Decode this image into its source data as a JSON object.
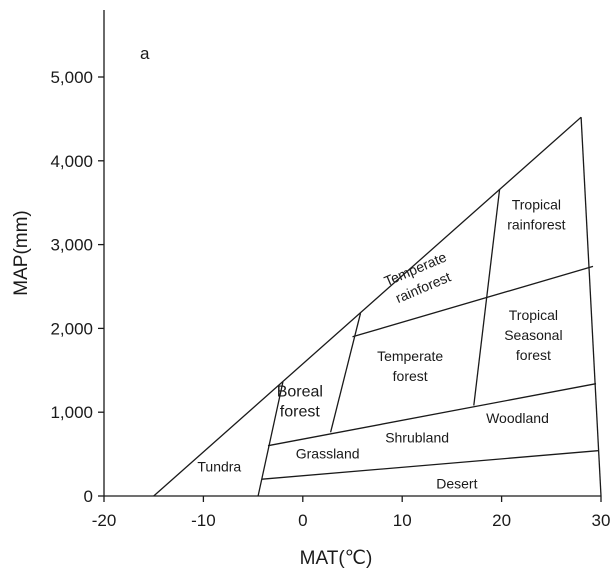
{
  "chart_data": {
    "type": "diagram",
    "panel_label": "a",
    "xlabel": "MAT(℃)",
    "ylabel": "MAP(mm)",
    "xlim": [
      -20,
      30
    ],
    "ylim": [
      0,
      5800
    ],
    "x_ticks": [
      -20,
      -10,
      0,
      10,
      20,
      30
    ],
    "x_tick_labels": [
      "-20",
      "-10",
      "0",
      "10",
      "20",
      "30"
    ],
    "y_ticks": [
      0,
      1000,
      2000,
      3000,
      4000,
      5000
    ],
    "y_tick_labels": [
      "0",
      "1,000",
      "2,000",
      "3,000",
      "4,000",
      "5,000"
    ],
    "grid": false,
    "boundaries": [
      {
        "name": "outer-left-edge",
        "points": [
          [
            -15,
            0
          ],
          [
            28,
            4520
          ]
        ]
      },
      {
        "name": "outer-right-edge",
        "points": [
          [
            28,
            4520
          ],
          [
            30,
            0
          ]
        ]
      },
      {
        "name": "desert-top",
        "points": [
          [
            -4.1,
            200
          ],
          [
            29.7,
            540
          ]
        ]
      },
      {
        "name": "grassland-shrubland-top",
        "points": [
          [
            -3.5,
            600
          ],
          [
            29.5,
            1340
          ]
        ]
      },
      {
        "name": "temperate-top",
        "points": [
          [
            5,
            1900
          ],
          [
            29.2,
            2740
          ]
        ]
      },
      {
        "name": "arctic-divide",
        "points": [
          [
            -4.5,
            0
          ],
          [
            -2,
            1360
          ]
        ]
      },
      {
        "name": "boreal-temperate-divide",
        "points": [
          [
            2.8,
            760
          ],
          [
            5.8,
            2180
          ]
        ]
      },
      {
        "name": "temperate-tropical-divide",
        "points": [
          [
            17.2,
            1080
          ],
          [
            19.8,
            3660
          ]
        ]
      }
    ],
    "regions": [
      {
        "id": "tundra",
        "lines": [
          "Tundra"
        ],
        "at": [
          -8.4,
          350
        ]
      },
      {
        "id": "boreal",
        "lines": [
          "Boreal",
          "forest"
        ],
        "at": [
          -0.3,
          1130
        ],
        "large": true
      },
      {
        "id": "grassland",
        "lines": [
          "Grassland"
        ],
        "at": [
          2.5,
          510
        ]
      },
      {
        "id": "shrubland",
        "lines": [
          "Shrubland"
        ],
        "at": [
          11.5,
          700
        ]
      },
      {
        "id": "woodland",
        "lines": [
          "Woodland"
        ],
        "at": [
          21.6,
          930
        ]
      },
      {
        "id": "desert",
        "lines": [
          "Desert"
        ],
        "at": [
          15.5,
          150
        ]
      },
      {
        "id": "temperate-forest",
        "lines": [
          "Temperate",
          "forest"
        ],
        "at": [
          10.8,
          1550
        ]
      },
      {
        "id": "temperate-rainforest",
        "lines": [
          "Temperate",
          "rainforest"
        ],
        "at": [
          11.7,
          2600
        ],
        "rotate": -23
      },
      {
        "id": "tropical-rainforest",
        "lines": [
          "Tropical",
          "rainforest"
        ],
        "at": [
          23.5,
          3360
        ]
      },
      {
        "id": "tropical-seasonal-forest",
        "lines": [
          "Tropical",
          "Seasonal",
          "forest"
        ],
        "at": [
          23.2,
          1920
        ]
      }
    ]
  }
}
